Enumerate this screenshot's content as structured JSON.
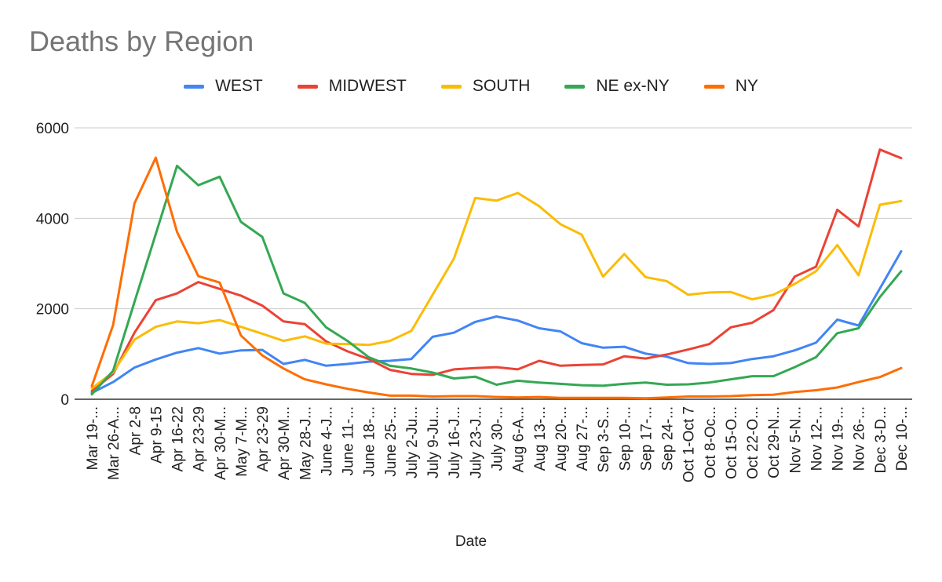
{
  "chart_data": {
    "type": "line",
    "title": "Deaths by Region",
    "xlabel": "Date",
    "ylabel": "",
    "ylim": [
      0,
      6000
    ],
    "yticks": [
      0,
      2000,
      4000,
      6000
    ],
    "grid": true,
    "legend_position": "top",
    "categories": [
      "Mar 19-...",
      "Mar 26-A...",
      "Apr 2-8",
      "Apr 9-15",
      "Apr 16-22",
      "Apr 23-29",
      "Apr 30-M...",
      "May 7-M...",
      "Apr 23-29",
      "Apr 30-M...",
      "May 28-J...",
      "June 4-J...",
      "June 11-...",
      "June 18-...",
      "June 25-...",
      "July 2-Ju...",
      "July 9-Ju...",
      "July 16-J...",
      "July 23-J...",
      "July 30-...",
      "Aug 6-A...",
      "Aug 13-...",
      "Aug 20-...",
      "Aug 27-...",
      "Sep 3-S...",
      "Sep 10-...",
      "Sep 17-...",
      "Sep 24-...",
      "Oct 1-Oct 7",
      "Oct 8-Oc...",
      "Oct 15-O...",
      "Oct 22-O...",
      "Oct 29-N...",
      "Nov 5-N...",
      "Nov 12-...",
      "Nov 19-...",
      "Nov 26-...",
      "Dec 3-D...",
      "Dec 10-..."
    ],
    "series": [
      {
        "name": "WEST",
        "color": "#4285f4",
        "values": [
          140,
          380,
          700,
          880,
          1030,
          1130,
          1010,
          1080,
          1090,
          780,
          870,
          740,
          780,
          830,
          850,
          890,
          1380,
          1470,
          1710,
          1830,
          1740,
          1570,
          1500,
          1240,
          1140,
          1160,
          1010,
          940,
          800,
          780,
          800,
          890,
          950,
          1080,
          1250,
          1760,
          1630,
          2450,
          3270
        ]
      },
      {
        "name": "MIDWEST",
        "color": "#ea4335",
        "values": [
          180,
          560,
          1470,
          2190,
          2340,
          2590,
          2440,
          2290,
          2070,
          1720,
          1660,
          1280,
          1060,
          890,
          650,
          560,
          540,
          660,
          690,
          710,
          660,
          850,
          740,
          760,
          770,
          950,
          900,
          990,
          1100,
          1220,
          1590,
          1690,
          1970,
          2710,
          2930,
          4190,
          3820,
          5520,
          5330
        ]
      },
      {
        "name": "SOUTH",
        "color": "#fbbc04",
        "values": [
          240,
          600,
          1320,
          1600,
          1720,
          1680,
          1750,
          1600,
          1450,
          1290,
          1390,
          1230,
          1220,
          1200,
          1290,
          1510,
          2310,
          3110,
          4450,
          4390,
          4560,
          4270,
          3870,
          3640,
          2710,
          3210,
          2700,
          2610,
          2310,
          2360,
          2370,
          2210,
          2310,
          2550,
          2830,
          3410,
          2740,
          4300,
          4380
        ]
      },
      {
        "name": "NE ex-NY",
        "color": "#34a853",
        "values": [
          110,
          630,
          2150,
          3650,
          5160,
          4730,
          4920,
          3920,
          3590,
          2340,
          2130,
          1590,
          1290,
          930,
          740,
          680,
          590,
          460,
          500,
          320,
          410,
          370,
          340,
          310,
          300,
          340,
          370,
          320,
          330,
          370,
          440,
          510,
          510,
          710,
          930,
          1460,
          1570,
          2260,
          2830
        ]
      },
      {
        "name": "NY",
        "color": "#ff6d01",
        "values": [
          290,
          1640,
          4330,
          5340,
          3700,
          2720,
          2580,
          1410,
          970,
          680,
          440,
          330,
          230,
          150,
          80,
          80,
          60,
          70,
          70,
          50,
          40,
          50,
          30,
          30,
          30,
          30,
          20,
          40,
          60,
          60,
          70,
          90,
          100,
          160,
          200,
          260,
          380,
          490,
          690
        ]
      }
    ]
  }
}
